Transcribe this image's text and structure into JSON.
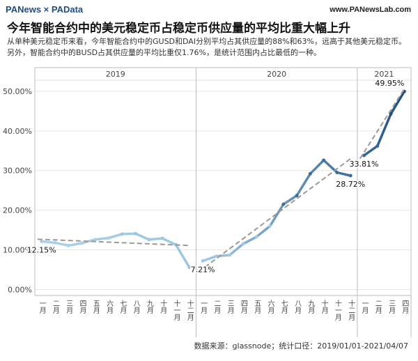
{
  "header": {
    "logo": "PANews × PAData",
    "url": "www.PANewsLab.com",
    "title": "今年智能合约中的美元稳定币占稳定币供应量的平均比重大幅上升",
    "subtitle": "从单种美元稳定币来看，今年智能合约中的GUSD和DAI分别平均占其供应量的88%和63%，远高于其他美元稳定币。另外，智能合约中的BUSD占其供应量的平均比重仅1.76%，是统计范围内占比最低的一种。"
  },
  "chart_data": [
    {
      "type": "line",
      "title": "2019",
      "categories": [
        "一月",
        "二月",
        "三月",
        "四月",
        "五月",
        "六月",
        "七月",
        "八月",
        "九月",
        "十月",
        "十一月",
        "十二月"
      ],
      "values": [
        12.15,
        11.8,
        11.1,
        11.7,
        12.6,
        13.0,
        14.0,
        14.1,
        12.6,
        12.9,
        11.3,
        5.6
      ],
      "value_labels": [
        "12.15%",
        null,
        null,
        null,
        null,
        null,
        null,
        null,
        null,
        null,
        null,
        null
      ],
      "trend": [
        12.7,
        11.1
      ],
      "colors": [
        "#a9d0e8",
        "#9cc7e2"
      ],
      "ylim": [
        -1.5,
        52.8
      ],
      "yticks": [
        {
          "value": 0,
          "label": "0.00%"
        },
        {
          "value": 10,
          "label": "10.00%"
        },
        {
          "value": 20,
          "label": "20.00%"
        },
        {
          "value": 30,
          "label": "30.00%"
        },
        {
          "value": 40,
          "label": "40.00%"
        },
        {
          "value": 50,
          "label": "50.00%"
        }
      ]
    },
    {
      "type": "line",
      "title": "2020",
      "categories": [
        "一月",
        "二月",
        "三月",
        "四月",
        "五月",
        "六月",
        "七月",
        "八月",
        "九月",
        "十月",
        "十一月",
        "十二月"
      ],
      "values": [
        7.21,
        8.4,
        8.7,
        11.5,
        13.3,
        16.0,
        21.5,
        23.7,
        29.2,
        32.6,
        29.5,
        28.72
      ],
      "value_labels": [
        "7.21%",
        null,
        null,
        null,
        null,
        null,
        null,
        null,
        null,
        null,
        null,
        "28.72%"
      ],
      "trend": [
        4.5,
        33.0
      ],
      "colors": [
        "#a3cbe5",
        "#3f6f99"
      ],
      "ylim": [
        -1.5,
        52.8
      ]
    },
    {
      "type": "line",
      "title": "2021",
      "categories": [
        "一月",
        "二月",
        "三月",
        "四月"
      ],
      "values": [
        33.81,
        36.2,
        44.3,
        49.95
      ],
      "value_labels": [
        "33.81%",
        null,
        null,
        "49.95%"
      ],
      "trend": [
        33.0,
        50.6
      ],
      "colors": [
        "#3a6a95",
        "#23507c"
      ],
      "ylim": [
        -1.5,
        52.8
      ]
    }
  ],
  "footer": "数据来源：glassnode；统计口径：2019/01/01-2021/04/07"
}
